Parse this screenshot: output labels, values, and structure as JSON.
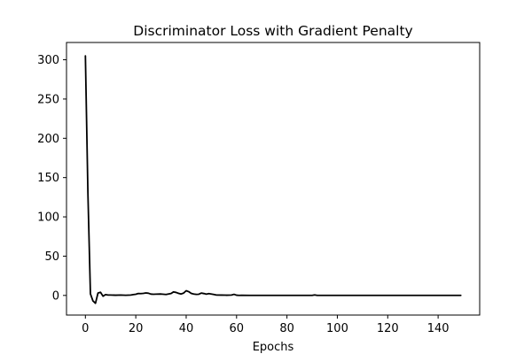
{
  "chart_data": {
    "type": "line",
    "title": "Discriminator Loss with Gradient Penalty",
    "xlabel": "Epochs",
    "ylabel": "",
    "xlim": [
      -7.5,
      156.5
    ],
    "ylim": [
      -25,
      322
    ],
    "xticks": [
      0,
      20,
      40,
      60,
      80,
      100,
      120,
      140
    ],
    "yticks": [
      0,
      50,
      100,
      150,
      200,
      250,
      300
    ],
    "grid": false,
    "legend": "none",
    "colors": {
      "line": "#000000",
      "background": "#ffffff",
      "axes": "#000000"
    },
    "series": [
      {
        "x": [
          0,
          1,
          2,
          3,
          4,
          5,
          6,
          7,
          8,
          9,
          10,
          12,
          14,
          16,
          18,
          19,
          20,
          21,
          22,
          23,
          24,
          25,
          26,
          27,
          28,
          30,
          32,
          34,
          35,
          36,
          37,
          38,
          39,
          40,
          41,
          42,
          43,
          44,
          45,
          46,
          47,
          48,
          49,
          50,
          51,
          52,
          54,
          56,
          58,
          59,
          60,
          61,
          62,
          65,
          70,
          80,
          90,
          91,
          92,
          100,
          110,
          120,
          130,
          140,
          149
        ],
        "y": [
          305,
          130,
          2,
          -7,
          -10,
          3,
          4,
          -1,
          1,
          0.5,
          0.5,
          0.3,
          0.5,
          0.2,
          0.5,
          1,
          1.5,
          2.5,
          2.3,
          2.6,
          3.2,
          2.8,
          1.7,
          1.5,
          1.6,
          1.8,
          1.2,
          2.5,
          4.5,
          3.8,
          2.6,
          1.8,
          3,
          6,
          4.8,
          2.6,
          1.8,
          1.3,
          1.5,
          3,
          2.4,
          1.6,
          2.3,
          1.8,
          1.2,
          0.5,
          0.4,
          0.3,
          0.5,
          1.4,
          0.3,
          0.1,
          0.2,
          0.1,
          0.1,
          0.1,
          0.1,
          0.6,
          0.1,
          0.1,
          0.1,
          0.1,
          0.1,
          0.1,
          0.1
        ]
      }
    ]
  }
}
